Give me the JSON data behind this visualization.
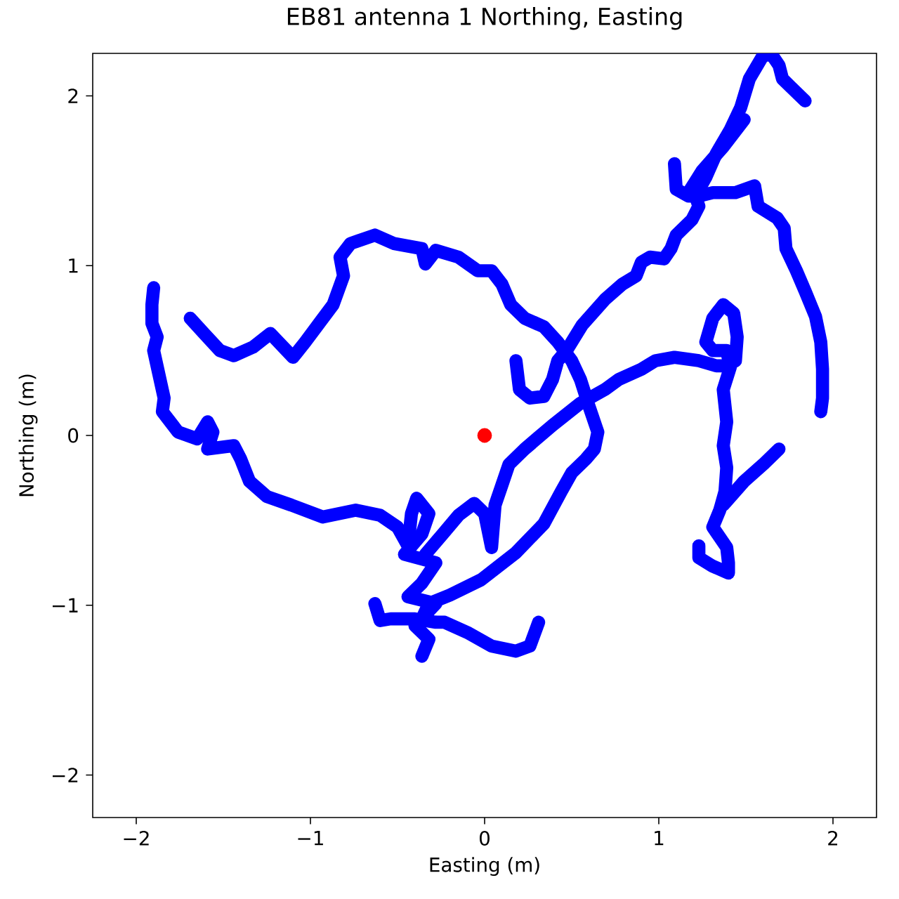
{
  "chart_data": {
    "type": "line",
    "title": "EB81 antenna 1 Northing, Easting",
    "xlabel": "Easting (m)",
    "ylabel": "Northing (m)",
    "xlim": [
      -2.25,
      2.25
    ],
    "ylim": [
      -2.25,
      2.25
    ],
    "xticks": [
      {
        "value": -2,
        "label": "−2"
      },
      {
        "value": -1,
        "label": "−1"
      },
      0,
      1,
      2
    ],
    "yticks": [
      {
        "value": -2,
        "label": "−2"
      },
      {
        "value": -1,
        "label": "−1"
      },
      0,
      1,
      2
    ],
    "line_style": "solid",
    "series": [
      {
        "color": "#0000ff",
        "x": [
          -1.9,
          -1.91,
          -1.91,
          -1.88,
          -1.9,
          -1.87,
          -1.84,
          -1.85,
          -1.76,
          -1.65,
          -1.59,
          -1.56,
          -1.59,
          -1.44,
          -1.4,
          -1.35,
          -1.25,
          -1.11,
          -0.93,
          -0.74,
          -0.6,
          -0.5,
          -0.44,
          -0.42,
          -0.39,
          -0.32,
          -0.36,
          -0.46,
          -0.28,
          -0.36,
          -0.44,
          -0.28,
          -0.4,
          -0.32,
          -0.36
        ],
        "values": [
          0.87,
          0.77,
          0.66,
          0.58,
          0.5,
          0.36,
          0.22,
          0.14,
          0.02,
          -0.02,
          0.08,
          0.02,
          -0.08,
          -0.06,
          -0.14,
          -0.27,
          -0.36,
          -0.41,
          -0.48,
          -0.44,
          -0.47,
          -0.54,
          -0.65,
          -0.46,
          -0.37,
          -0.46,
          -0.58,
          -0.7,
          -0.75,
          -0.87,
          -0.95,
          -0.99,
          -1.12,
          -1.2,
          -1.3
        ]
      },
      {
        "color": "#0000ff",
        "x": [
          -0.63,
          -0.6,
          -0.54,
          -0.4,
          -0.28,
          -0.23,
          -0.1,
          0.04,
          0.18,
          0.26,
          0.31
        ],
        "values": [
          -0.99,
          -1.09,
          -1.08,
          -1.08,
          -1.1,
          -1.1,
          -1.16,
          -1.24,
          -1.27,
          -1.24,
          -1.1
        ]
      },
      {
        "color": "#0000ff",
        "x": [
          -1.69,
          -1.61,
          -1.52,
          -1.44,
          -1.33,
          -1.23,
          -1.1,
          -1.03,
          -0.95,
          -0.87,
          -0.81,
          -0.83,
          -0.77,
          -0.63,
          -0.52,
          -0.36,
          -0.34,
          -0.28,
          -0.15,
          -0.04,
          0.04,
          0.1,
          0.15,
          0.23,
          0.34,
          0.42,
          0.5,
          0.55,
          0.6,
          0.65,
          0.63,
          0.58,
          0.5,
          0.44,
          0.34,
          0.18,
          -0.02,
          -0.2,
          -0.32,
          -0.36
        ],
        "values": [
          0.69,
          0.6,
          0.5,
          0.47,
          0.52,
          0.6,
          0.46,
          0.55,
          0.66,
          0.77,
          0.94,
          1.05,
          1.13,
          1.18,
          1.13,
          1.1,
          1.01,
          1.09,
          1.05,
          0.97,
          0.97,
          0.89,
          0.77,
          0.69,
          0.64,
          0.55,
          0.44,
          0.33,
          0.17,
          0.02,
          -0.08,
          -0.14,
          -0.22,
          -0.33,
          -0.52,
          -0.69,
          -0.85,
          -0.94,
          -0.99,
          -1.08
        ]
      },
      {
        "color": "#0000ff",
        "x": [
          0.18,
          0.2,
          0.26,
          0.34,
          0.39,
          0.42,
          0.47,
          0.56,
          0.69,
          0.79,
          0.87,
          0.9,
          0.95,
          1.03,
          1.07,
          1.1,
          1.19,
          1.23,
          1.21,
          1.27,
          1.33,
          1.41,
          1.47,
          1.52,
          1.6,
          1.65,
          1.69,
          1.71,
          1.76,
          1.84
        ],
        "values": [
          0.44,
          0.27,
          0.22,
          0.23,
          0.33,
          0.44,
          0.5,
          0.65,
          0.8,
          0.89,
          0.94,
          1.02,
          1.05,
          1.04,
          1.1,
          1.18,
          1.27,
          1.35,
          1.41,
          1.52,
          1.66,
          1.8,
          1.93,
          2.1,
          2.24,
          2.24,
          2.18,
          2.1,
          2.05,
          1.97
        ]
      },
      {
        "color": "#0000ff",
        "x": [
          1.09,
          1.1,
          1.17,
          1.23,
          1.31,
          1.44,
          1.55,
          1.57,
          1.68,
          1.72,
          1.73,
          1.79,
          1.84,
          1.9,
          1.93,
          1.94,
          1.94,
          1.93
        ],
        "values": [
          1.6,
          1.45,
          1.41,
          1.41,
          1.43,
          1.43,
          1.47,
          1.35,
          1.28,
          1.22,
          1.1,
          0.97,
          0.85,
          0.7,
          0.55,
          0.39,
          0.22,
          0.14
        ]
      },
      {
        "color": "#0000ff",
        "x": [
          1.49,
          1.37,
          1.25,
          1.17
        ],
        "values": [
          1.86,
          1.7,
          1.56,
          1.43
        ]
      },
      {
        "color": "#0000ff",
        "x": [
          -0.34,
          -0.24,
          -0.15,
          -0.06,
          0.0,
          0.04,
          0.06,
          0.1,
          0.14,
          0.23,
          0.39,
          0.55,
          0.69,
          0.77,
          0.9,
          0.98,
          1.09,
          1.23,
          1.33,
          1.39,
          1.44,
          1.45,
          1.43,
          1.37,
          1.31,
          1.27,
          1.31,
          1.39,
          1.41,
          1.37,
          1.39,
          1.37,
          1.39,
          1.38,
          1.35,
          1.31,
          1.35,
          1.39,
          1.4,
          1.4,
          1.31,
          1.23,
          1.23
        ],
        "values": [
          -0.7,
          -0.58,
          -0.47,
          -0.4,
          -0.46,
          -0.66,
          -0.41,
          -0.29,
          -0.17,
          -0.08,
          0.06,
          0.19,
          0.27,
          0.33,
          0.39,
          0.44,
          0.46,
          0.44,
          0.41,
          0.41,
          0.44,
          0.58,
          0.72,
          0.77,
          0.69,
          0.55,
          0.5,
          0.5,
          0.4,
          0.27,
          0.08,
          -0.06,
          -0.19,
          -0.33,
          -0.44,
          -0.54,
          -0.6,
          -0.66,
          -0.75,
          -0.81,
          -0.77,
          -0.72,
          -0.65
        ]
      },
      {
        "color": "#0000ff",
        "x": [
          1.37,
          1.49,
          1.6,
          1.69
        ],
        "values": [
          -0.41,
          -0.27,
          -0.17,
          -0.08
        ]
      },
      {
        "type": "scatter",
        "color": "#ff0000",
        "x": [
          0
        ],
        "values": [
          0
        ]
      }
    ]
  }
}
